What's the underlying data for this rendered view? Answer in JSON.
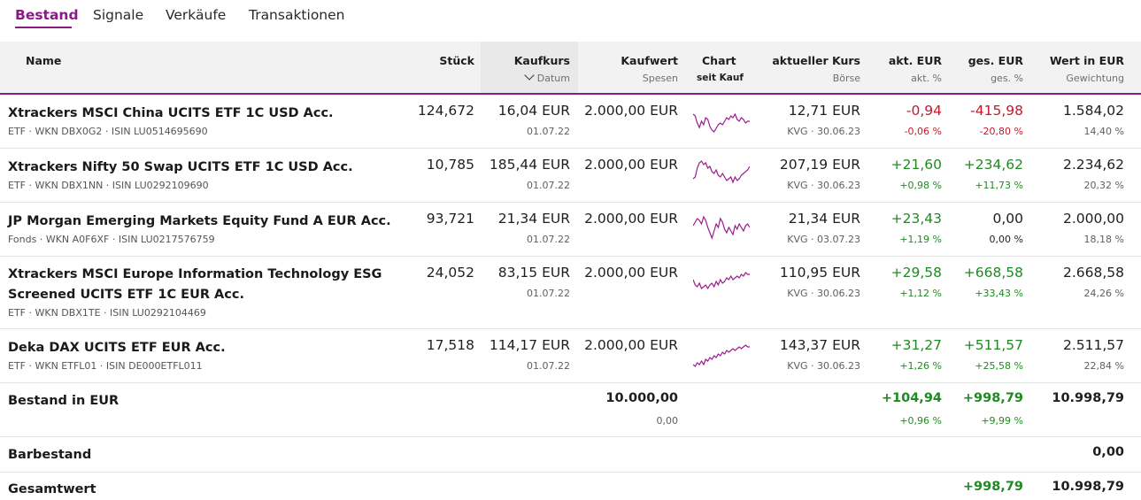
{
  "tabs": [
    "Bestand",
    "Signale",
    "Verkäufe",
    "Transaktionen"
  ],
  "header": {
    "name": "Name",
    "stueck": "Stück",
    "kaufkurs": "Kaufkurs",
    "datum": "Datum",
    "kaufwert": "Kaufwert",
    "spesen": "Spesen",
    "chart": "Chart",
    "seit_kauf": "seit Kauf",
    "aktueller_kurs": "aktueller Kurs",
    "boerse": "Börse",
    "akt_eur": "akt. EUR",
    "akt_pct": "akt. %",
    "ges_eur": "ges. EUR",
    "ges_pct": "ges. %",
    "wert": "Wert in EUR",
    "gewichtung": "Gewichtung"
  },
  "positions": [
    {
      "name": "Xtrackers MSCI China UCITS ETF 1C USD Acc.",
      "meta": "ETF · WKN DBX0G2 · ISIN LU0514695690",
      "stueck": "124,672",
      "kaufkurs": "16,04 EUR",
      "datum": "01.07.22",
      "kaufwert": "2.000,00 EUR",
      "kurs": "12,71 EUR",
      "boerse": "KVG · 30.06.23",
      "akt_eur": "-0,94",
      "akt_pct": "-0,06 %",
      "ges_eur": "-415,98",
      "ges_pct": "-20,80 %",
      "wert": "1.584,02",
      "gewichtung": "14,40 %",
      "akt_color": "#c8182a",
      "ges_color": "#c8182a",
      "spark": [
        10,
        12,
        20,
        25,
        18,
        22,
        14,
        16,
        24,
        28,
        30,
        26,
        22,
        20,
        22,
        18,
        14,
        16,
        12,
        14,
        10,
        16,
        18,
        14,
        16,
        20,
        18,
        18
      ]
    },
    {
      "name": "Xtrackers Nifty 50 Swap UCITS ETF 1C USD Acc.",
      "meta": "ETF · WKN DBX1NN · ISIN LU0292109690",
      "stueck": "10,785",
      "kaufkurs": "185,44 EUR",
      "datum": "01.07.22",
      "kaufwert": "2.000,00 EUR",
      "kurs": "207,19 EUR",
      "boerse": "KVG · 30.06.23",
      "akt_eur": "+21,60",
      "akt_pct": "+0,98 %",
      "ges_eur": "+234,62",
      "ges_pct": "+11,73 %",
      "wert": "2.234,62",
      "gewichtung": "20,32 %",
      "akt_color": "#1f8a22",
      "ges_color": "#1f8a22",
      "spark": [
        24,
        22,
        12,
        6,
        4,
        8,
        6,
        12,
        10,
        16,
        18,
        14,
        20,
        22,
        18,
        22,
        26,
        24,
        22,
        28,
        22,
        26,
        24,
        20,
        18,
        16,
        14,
        10
      ]
    },
    {
      "name": "JP Morgan Emerging Markets Equity Fund A EUR Acc.",
      "meta": "Fonds · WKN A0F6XF · ISIN LU0217576759",
      "stueck": "93,721",
      "kaufkurs": "21,34 EUR",
      "datum": "01.07.22",
      "kaufwert": "2.000,00 EUR",
      "kurs": "21,34 EUR",
      "boerse": "KVG · 03.07.23",
      "akt_eur": "+23,43",
      "akt_pct": "+1,19 %",
      "ges_eur": "0,00",
      "ges_pct": "0,00 %",
      "wert": "2.000,00",
      "gewichtung": "18,18 %",
      "akt_color": "#1f8a22",
      "ges_color": "#1e1e1e",
      "spark": [
        16,
        12,
        8,
        10,
        14,
        6,
        10,
        18,
        24,
        30,
        22,
        14,
        18,
        8,
        12,
        20,
        24,
        18,
        22,
        26,
        16,
        20,
        14,
        18,
        22,
        16,
        14,
        18
      ]
    },
    {
      "name": "Xtrackers MSCI Europe Information Technology ESG Screened UCITS ETF 1C EUR Acc.",
      "meta": "ETF · WKN DBX1TE · ISIN LU0292104469",
      "stueck": "24,052",
      "kaufkurs": "83,15 EUR",
      "datum": "01.07.22",
      "kaufwert": "2.000,00 EUR",
      "kurs": "110,95 EUR",
      "boerse": "KVG · 30.06.23",
      "akt_eur": "+29,58",
      "akt_pct": "+1,12 %",
      "ges_eur": "+668,58",
      "ges_pct": "+33,43 %",
      "wert": "2.668,58",
      "gewichtung": "24,26 %",
      "akt_color": "#1f8a22",
      "ges_color": "#1f8a22",
      "spark": [
        14,
        20,
        22,
        18,
        24,
        22,
        20,
        24,
        20,
        18,
        22,
        16,
        20,
        14,
        18,
        16,
        12,
        14,
        10,
        14,
        12,
        10,
        12,
        8,
        10,
        6,
        8,
        8
      ]
    },
    {
      "name": "Deka DAX UCITS ETF EUR Acc.",
      "meta": "ETF · WKN ETFL01 · ISIN DE000ETFL011",
      "stueck": "17,518",
      "kaufkurs": "114,17 EUR",
      "datum": "01.07.22",
      "kaufwert": "2.000,00 EUR",
      "kurs": "143,37 EUR",
      "boerse": "KVG · 30.06.23",
      "akt_eur": "+31,27",
      "akt_pct": "+1,26 %",
      "ges_eur": "+511,57",
      "ges_pct": "+25,58 %",
      "wert": "2.511,57",
      "gewichtung": "22,84 %",
      "akt_color": "#1f8a22",
      "ges_color": "#1f8a22",
      "spark": [
        26,
        28,
        24,
        26,
        22,
        26,
        20,
        22,
        18,
        20,
        16,
        18,
        14,
        16,
        12,
        14,
        10,
        12,
        10,
        8,
        10,
        8,
        6,
        8,
        6,
        4,
        6,
        6
      ]
    }
  ],
  "bestand": {
    "label": "Bestand in EUR",
    "kaufwert": "10.000,00",
    "spesen": "0,00",
    "akt_eur": "+104,94",
    "akt_pct": "+0,96 %",
    "ges_eur": "+998,79",
    "ges_pct": "+9,99 %",
    "wert": "10.998,79"
  },
  "barbestand": {
    "label": "Barbestand",
    "wert": "0,00"
  },
  "gesamtwert": {
    "label": "Gesamtwert",
    "ges_eur": "+998,79",
    "wert": "10.998,79"
  },
  "colors": {
    "accent": "#8a1a86",
    "positive": "#1f8a22",
    "negative": "#c8182a",
    "sparkline": "#9b1a8e"
  }
}
